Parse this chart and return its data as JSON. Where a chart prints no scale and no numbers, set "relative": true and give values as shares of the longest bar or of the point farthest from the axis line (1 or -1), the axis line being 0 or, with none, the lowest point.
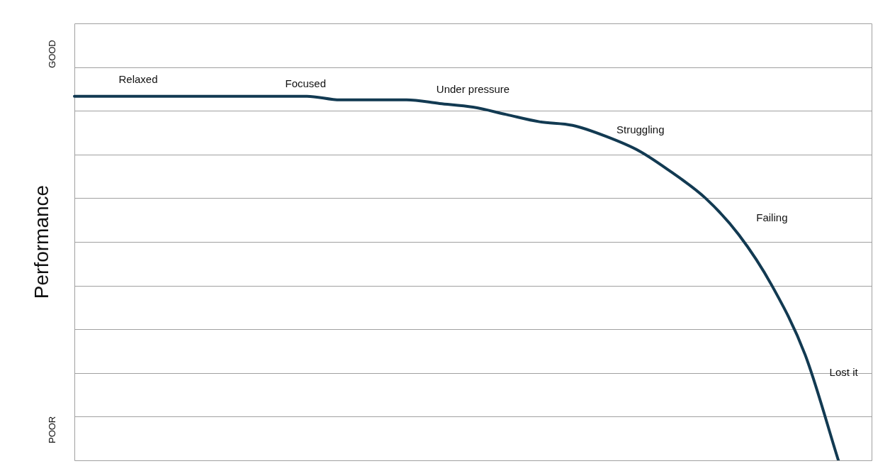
{
  "chart_data": {
    "type": "line",
    "ylabel": "Performance",
    "relative": true,
    "grid": true,
    "legend": false,
    "marker": "none",
    "line_style": "solid",
    "categories": [
      null,
      null,
      null,
      null,
      null,
      null,
      null,
      null,
      null,
      null,
      null,
      null,
      null,
      null,
      null,
      null,
      null,
      null,
      null,
      null,
      null,
      null,
      null,
      null,
      null
    ],
    "series": [
      {
        "color": "#123a52",
        "values": [
          1.0,
          1.0,
          1.0,
          1.0,
          1.0,
          1.0,
          1.0,
          1.0,
          0.99,
          0.99,
          0.99,
          0.98,
          0.97,
          0.95,
          0.93,
          0.92,
          0.89,
          0.85,
          0.79,
          0.72,
          0.62,
          0.48,
          0.29,
          0,
          null
        ]
      }
    ],
    "annotations": [
      "GOOD",
      "POOR",
      "Relaxed",
      "Focused",
      "Under pressure",
      "Struggling",
      "Failing",
      "Lost it"
    ]
  }
}
